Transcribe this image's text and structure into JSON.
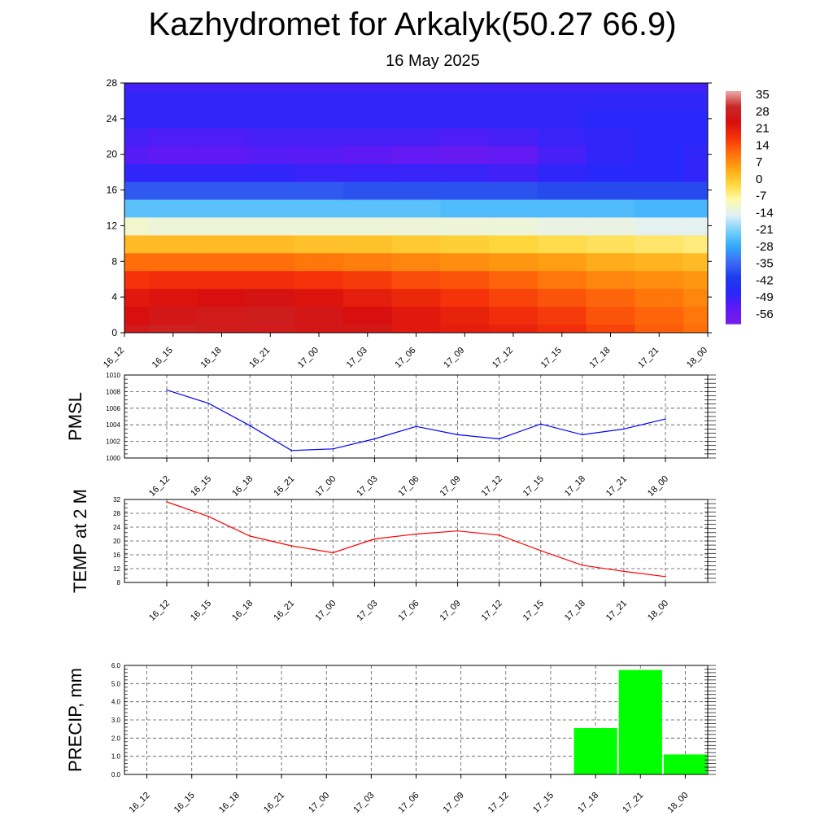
{
  "title": "Kazhydromet for Arkalyk(50.27 66.9)",
  "subtitle": "16 May 2025",
  "chart_data": [
    {
      "type": "heatmap",
      "name": "upper-air-cross-section",
      "x_categories": [
        "16_12",
        "16_15",
        "16_18",
        "16_21",
        "17_00",
        "17_03",
        "17_06",
        "17_09",
        "17_12",
        "17_15",
        "17_18",
        "17_21",
        "18_00"
      ],
      "ylim": [
        0,
        28
      ],
      "y_ticks": [
        0,
        4,
        8,
        12,
        16,
        20,
        24,
        28
      ],
      "y_levels": [
        0,
        2,
        4,
        6,
        8,
        10,
        12,
        14,
        16,
        18,
        20,
        22,
        24,
        26,
        28
      ],
      "temperature_rows_bottom_to_top": [
        [
          31,
          33,
          32,
          31,
          30,
          30,
          26,
          25,
          24,
          22,
          19,
          16,
          14
        ],
        [
          28,
          30,
          31,
          32,
          30,
          28,
          26,
          24,
          22,
          20,
          17,
          15,
          13
        ],
        [
          26,
          27,
          28,
          29,
          27,
          25,
          23,
          21,
          19,
          17,
          15,
          13,
          11
        ],
        [
          21,
          22,
          22,
          22,
          21,
          20,
          18,
          17,
          15,
          13,
          11,
          10,
          9
        ],
        [
          14,
          14,
          14,
          14,
          13,
          12,
          11,
          10,
          9,
          8,
          6,
          5,
          4
        ],
        [
          4,
          4,
          4,
          4,
          3,
          3,
          2,
          1,
          0,
          -1,
          -2,
          -3,
          -4
        ],
        [
          -10,
          -11,
          -11,
          -11,
          -11,
          -11,
          -11,
          -11,
          -11,
          -12,
          -12,
          -13,
          -13
        ],
        [
          -24,
          -24,
          -24,
          -24,
          -24,
          -24,
          -24,
          -25,
          -25,
          -25,
          -25,
          -26,
          -26
        ],
        [
          -38,
          -38,
          -38,
          -38,
          -38,
          -39,
          -39,
          -39,
          -39,
          -40,
          -40,
          -40,
          -40
        ],
        [
          -50,
          -50,
          -50,
          -50,
          -51,
          -51,
          -51,
          -51,
          -52,
          -50,
          -49,
          -49,
          -50
        ],
        [
          -55,
          -56,
          -56,
          -55,
          -55,
          -56,
          -57,
          -58,
          -57,
          -53,
          -50,
          -49,
          -50
        ],
        [
          -53,
          -54,
          -54,
          -53,
          -53,
          -53,
          -53,
          -54,
          -53,
          -51,
          -50,
          -49,
          -49
        ],
        [
          -50,
          -50,
          -50,
          -50,
          -50,
          -50,
          -50,
          -50,
          -50,
          -50,
          -49,
          -49,
          -49
        ],
        [
          -50,
          -50,
          -50,
          -50,
          -50,
          -50,
          -50,
          -50,
          -50,
          -50,
          -50,
          -50,
          -50
        ],
        [
          -52,
          -52,
          -52,
          -52,
          -52,
          -52,
          -52,
          -52,
          -52,
          -52,
          -52,
          -52,
          -52
        ]
      ],
      "colorbar_labels": [
        "35",
        "28",
        "21",
        "14",
        "7",
        "0",
        "-7",
        "-14",
        "-21",
        "-28",
        "-35",
        "-42",
        "-49",
        "-56"
      ],
      "colorbar_range": [
        -63,
        42
      ]
    },
    {
      "type": "line",
      "ylabel": "PMSL",
      "categories": [
        "16_12",
        "16_15",
        "16_18",
        "16_21",
        "17_00",
        "17_03",
        "17_06",
        "17_09",
        "17_12",
        "17_15",
        "17_18",
        "17_21",
        "18_00"
      ],
      "values": [
        1008.2,
        1006.6,
        1003.9,
        1000.9,
        1001.1,
        1002.3,
        1003.8,
        1002.8,
        1002.3,
        1004.1,
        1002.8,
        1003.5,
        1004.7
      ],
      "ylim": [
        1000,
        1010
      ],
      "y_ticks": [
        "1000",
        "1002",
        "1004",
        "1006",
        "1008",
        "1010"
      ],
      "color": "#0000ff",
      "grid": true
    },
    {
      "type": "line",
      "ylabel": "TEMP at 2 M",
      "categories": [
        "16_12",
        "16_15",
        "16_18",
        "16_21",
        "17_00",
        "17_03",
        "17_06",
        "17_09",
        "17_12",
        "17_15",
        "17_18",
        "17_21",
        "18_00"
      ],
      "values": [
        31.3,
        27.1,
        21.4,
        18.6,
        16.6,
        20.6,
        22.0,
        22.9,
        21.7,
        17.2,
        13.0,
        11.2,
        9.7
      ],
      "ylim": [
        8,
        32
      ],
      "y_ticks": [
        "8",
        "12",
        "16",
        "20",
        "24",
        "28",
        "32"
      ],
      "color": "#ff0000",
      "grid": true
    },
    {
      "type": "bar",
      "ylabel": "PRECIP, mm",
      "categories": [
        "16_12",
        "16_15",
        "16_18",
        "16_21",
        "17_00",
        "17_03",
        "17_06",
        "17_09",
        "17_12",
        "17_15",
        "17_18",
        "17_21",
        "18_00"
      ],
      "values": [
        0,
        0,
        0,
        0,
        0,
        0,
        0,
        0,
        0,
        0,
        2.55,
        5.75,
        1.1
      ],
      "ylim": [
        0,
        6
      ],
      "y_ticks": [
        "0.0",
        "1.0",
        "2.0",
        "3.0",
        "4.0",
        "5.0",
        "6.0"
      ],
      "color": "#00ff00",
      "grid": true
    }
  ]
}
